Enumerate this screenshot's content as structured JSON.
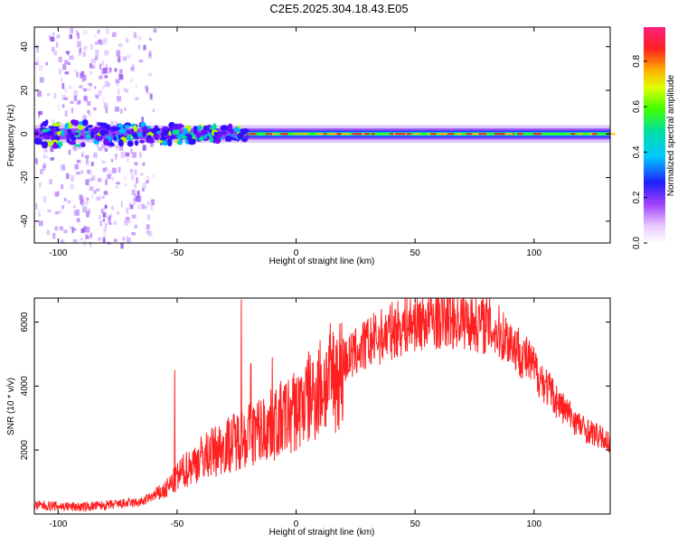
{
  "title": "C2E5.2025.304.18.43.E05",
  "chart_data": [
    {
      "type": "heatmap",
      "name": "spectrogram",
      "xlabel": "Height of straight line (km)",
      "ylabel": "Frequency (Hz)",
      "xlim": [
        -110,
        132
      ],
      "ylim": [
        -50,
        49
      ],
      "xticks": [
        -100,
        -50,
        0,
        50,
        100
      ],
      "yticks": [
        -40,
        -20,
        0,
        20,
        40
      ],
      "description_values": {
        "dominant_frequency_hz": 0,
        "noise_region_km": [
          -110,
          -60
        ],
        "tone_start_km": -20
      }
    },
    {
      "type": "bar",
      "name": "colorbar",
      "label": "Normalized spectral amplitude",
      "range": [
        0.0,
        0.95
      ],
      "ticks": [
        0.0,
        0.2,
        0.4,
        0.6,
        0.8
      ]
    },
    {
      "type": "line",
      "name": "snr",
      "xlabel": "Height of straight line (km)",
      "ylabel": "SNR (10 * v/v)",
      "xlim": [
        -110,
        132
      ],
      "ylim": [
        0,
        6750
      ],
      "xticks": [
        -100,
        -50,
        0,
        50,
        100
      ],
      "yticks": [
        2000,
        4000,
        6000
      ],
      "color": "#ff2020",
      "envelope": {
        "x": [
          -110,
          -90,
          -80,
          -65,
          -55,
          -48,
          -40,
          -30,
          -20,
          -10,
          0,
          10,
          20,
          30,
          40,
          50,
          60,
          70,
          80,
          90,
          100,
          110,
          120,
          132
        ],
        "y": [
          300,
          250,
          300,
          400,
          800,
          1400,
          1900,
          2300,
          2700,
          3000,
          3500,
          4300,
          4900,
          5500,
          5900,
          6200,
          6300,
          6300,
          6100,
          5600,
          4700,
          3600,
          2800,
          2300
        ]
      },
      "spikes": [
        {
          "x": -51,
          "y": 4500
        },
        {
          "x": -23,
          "y": 6700
        },
        {
          "x": -19,
          "y": 4700
        },
        {
          "x": -10,
          "y": 4900
        }
      ]
    }
  ],
  "colors": {
    "background": "#ffffff",
    "frame": "#000000",
    "line": "#ff2020"
  }
}
